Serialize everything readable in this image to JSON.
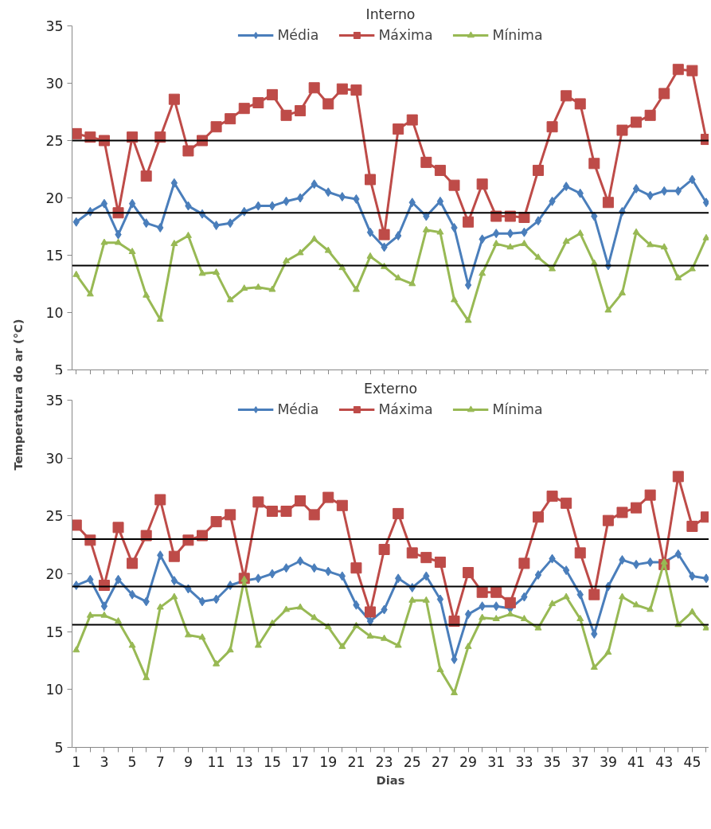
{
  "chart_data": [
    {
      "type": "line",
      "title": "Interno",
      "ylabel": "Temperatura do ar (°C)",
      "x": [
        1,
        2,
        3,
        4,
        5,
        6,
        7,
        8,
        9,
        10,
        11,
        12,
        13,
        14,
        15,
        16,
        17,
        18,
        19,
        20,
        21,
        22,
        23,
        24,
        25,
        26,
        27,
        28,
        29,
        30,
        31,
        32,
        33,
        34,
        35,
        36,
        37,
        38,
        39,
        40,
        41,
        42,
        43,
        44,
        45,
        46
      ],
      "series": [
        {
          "name": "Média",
          "color": "#4a7ebb",
          "marker": "diamond",
          "values": [
            17.9,
            18.8,
            19.5,
            16.8,
            19.5,
            17.8,
            17.4,
            21.3,
            19.3,
            18.6,
            17.6,
            17.8,
            18.8,
            19.3,
            19.3,
            19.7,
            20.0,
            21.2,
            20.5,
            20.1,
            19.9,
            17.0,
            15.7,
            16.7,
            19.6,
            18.4,
            19.7,
            17.4,
            12.4,
            16.4,
            16.9,
            16.9,
            17.0,
            18.0,
            19.7,
            21.0,
            20.4,
            18.4,
            14.1,
            18.8,
            20.8,
            20.2,
            20.6,
            20.6,
            21.6,
            19.6
          ]
        },
        {
          "name": "Máxima",
          "color": "#be4b48",
          "marker": "square",
          "values": [
            25.6,
            25.3,
            25.0,
            18.7,
            25.3,
            21.9,
            25.3,
            28.6,
            24.1,
            25.0,
            26.2,
            26.9,
            27.8,
            28.3,
            29.0,
            27.2,
            27.6,
            29.6,
            28.2,
            29.5,
            29.4,
            21.6,
            16.8,
            26.0,
            26.8,
            23.1,
            22.4,
            21.1,
            17.9,
            21.2,
            18.4,
            18.4,
            18.3,
            22.4,
            26.2,
            28.9,
            28.2,
            23.0,
            19.6,
            25.9,
            26.6,
            27.2,
            29.1,
            31.2,
            31.1,
            25.1
          ]
        },
        {
          "name": "Mínima",
          "color": "#98b954",
          "marker": "triangle",
          "values": [
            13.3,
            11.6,
            16.1,
            16.1,
            15.3,
            11.5,
            9.4,
            16.0,
            16.7,
            13.4,
            13.5,
            11.1,
            12.1,
            12.2,
            12.0,
            14.5,
            15.2,
            16.4,
            15.4,
            13.9,
            12.0,
            14.9,
            14.0,
            13.0,
            12.5,
            17.2,
            17.0,
            11.1,
            9.3,
            13.4,
            16.0,
            15.7,
            16.0,
            14.8,
            13.8,
            16.2,
            16.9,
            14.3,
            10.2,
            11.7,
            17.0,
            15.9,
            15.7,
            13.0,
            13.8,
            16.5
          ]
        }
      ],
      "ref_lines": [
        {
          "axis": "y",
          "value": 25,
          "label": null,
          "color": "#000000"
        },
        {
          "axis": "y",
          "value": 18.7,
          "label": null,
          "color": "#000000"
        },
        {
          "axis": "y",
          "value": 14.1,
          "label": null,
          "color": "#000000"
        }
      ],
      "xlim": [
        0.7,
        46.2
      ],
      "xticks": [
        1,
        {
          "value": 2,
          "label": null
        },
        3,
        {
          "value": 4,
          "label": null
        },
        5,
        {
          "value": 6,
          "label": null
        },
        7,
        {
          "value": 8,
          "label": null
        },
        9,
        {
          "value": 10,
          "label": null
        },
        11,
        {
          "value": 12,
          "label": null
        },
        13,
        {
          "value": 14,
          "label": null
        },
        15,
        {
          "value": 16,
          "label": null
        },
        17,
        {
          "value": 18,
          "label": null
        },
        19,
        {
          "value": 20,
          "label": null
        },
        21,
        {
          "value": 22,
          "label": null
        },
        23,
        {
          "value": 24,
          "label": null
        },
        25,
        {
          "value": 26,
          "label": null
        },
        27,
        {
          "value": 28,
          "label": null
        },
        29,
        {
          "value": 30,
          "label": null
        },
        31,
        {
          "value": 32,
          "label": null
        },
        33,
        {
          "value": 34,
          "label": null
        },
        35,
        {
          "value": 36,
          "label": null
        },
        37,
        {
          "value": 38,
          "label": null
        },
        39,
        {
          "value": 40,
          "label": null
        },
        41,
        {
          "value": 42,
          "label": null
        },
        43,
        {
          "value": 44,
          "label": null
        },
        45,
        {
          "value": 46,
          "label": null
        }
      ],
      "ylim": [
        5,
        35
      ],
      "yticks": [
        5,
        10,
        15,
        20,
        25,
        30,
        35
      ],
      "tick_labels": "y",
      "grid": false,
      "legend": "top",
      "line_style": "solid"
    },
    {
      "type": "line",
      "title": "Externo",
      "xlabel": "Dias",
      "x": [
        1,
        2,
        3,
        4,
        5,
        6,
        7,
        8,
        9,
        10,
        11,
        12,
        13,
        14,
        15,
        16,
        17,
        18,
        19,
        20,
        21,
        22,
        23,
        24,
        25,
        26,
        27,
        28,
        29,
        30,
        31,
        32,
        33,
        34,
        35,
        36,
        37,
        38,
        39,
        40,
        41,
        42,
        43,
        44,
        45,
        46
      ],
      "series": [
        {
          "name": "Média",
          "color": "#4a7ebb",
          "marker": "diamond",
          "values": [
            19.0,
            19.5,
            17.2,
            19.5,
            18.2,
            17.6,
            21.6,
            19.4,
            18.7,
            17.6,
            17.8,
            19.0,
            19.4,
            19.6,
            20.0,
            20.5,
            21.1,
            20.5,
            20.2,
            19.8,
            17.3,
            15.9,
            16.9,
            19.6,
            18.8,
            19.8,
            17.8,
            12.6,
            16.5,
            17.2,
            17.2,
            17.0,
            18.0,
            19.9,
            21.3,
            20.3,
            18.2,
            14.8,
            18.9,
            21.2,
            20.8,
            21.0,
            21.0,
            21.7,
            19.8,
            19.6
          ]
        },
        {
          "name": "Máxima",
          "color": "#be4b48",
          "marker": "square",
          "values": [
            24.2,
            22.9,
            19.0,
            24.0,
            20.9,
            23.3,
            26.4,
            21.5,
            22.9,
            23.3,
            24.5,
            25.1,
            19.6,
            26.2,
            25.4,
            25.4,
            26.3,
            25.1,
            26.6,
            25.9,
            20.5,
            16.7,
            22.1,
            25.2,
            21.8,
            21.4,
            21.0,
            15.9,
            20.1,
            18.4,
            18.4,
            17.5,
            20.9,
            24.9,
            26.7,
            26.1,
            21.8,
            18.2,
            24.6,
            25.3,
            25.7,
            26.8,
            20.8,
            28.4,
            24.1,
            24.9
          ]
        },
        {
          "name": "Mínima",
          "color": "#98b954",
          "marker": "triangle",
          "values": [
            13.4,
            16.4,
            16.4,
            15.9,
            13.8,
            11.0,
            17.1,
            18.0,
            14.7,
            14.5,
            12.2,
            13.4,
            19.5,
            13.8,
            15.7,
            16.9,
            17.1,
            16.2,
            15.4,
            13.7,
            15.5,
            14.6,
            14.4,
            13.8,
            17.7,
            17.7,
            11.7,
            9.7,
            13.7,
            16.2,
            16.1,
            16.5,
            16.1,
            15.3,
            17.4,
            18.0,
            16.1,
            11.9,
            13.2,
            18.0,
            17.3,
            16.9,
            21.0,
            15.6,
            16.7,
            15.3
          ]
        }
      ],
      "ref_lines": [
        {
          "axis": "y",
          "value": 23,
          "label": null,
          "color": "#000000"
        },
        {
          "axis": "y",
          "value": 18.9,
          "label": null,
          "color": "#000000"
        },
        {
          "axis": "y",
          "value": 15.6,
          "label": null,
          "color": "#000000"
        }
      ],
      "xlim": [
        0.7,
        46.2
      ],
      "xticks": [
        1,
        {
          "value": 2,
          "label": null
        },
        3,
        {
          "value": 4,
          "label": null
        },
        5,
        {
          "value": 6,
          "label": null
        },
        7,
        {
          "value": 8,
          "label": null
        },
        9,
        {
          "value": 10,
          "label": null
        },
        11,
        {
          "value": 12,
          "label": null
        },
        13,
        {
          "value": 14,
          "label": null
        },
        15,
        {
          "value": 16,
          "label": null
        },
        17,
        {
          "value": 18,
          "label": null
        },
        19,
        {
          "value": 20,
          "label": null
        },
        21,
        {
          "value": 22,
          "label": null
        },
        23,
        {
          "value": 24,
          "label": null
        },
        25,
        {
          "value": 26,
          "label": null
        },
        27,
        {
          "value": 28,
          "label": null
        },
        29,
        {
          "value": 30,
          "label": null
        },
        31,
        {
          "value": 32,
          "label": null
        },
        33,
        {
          "value": 34,
          "label": null
        },
        35,
        {
          "value": 36,
          "label": null
        },
        37,
        {
          "value": 38,
          "label": null
        },
        39,
        {
          "value": 40,
          "label": null
        },
        41,
        {
          "value": 42,
          "label": null
        },
        43,
        {
          "value": 44,
          "label": null
        },
        45,
        {
          "value": 46,
          "label": null
        }
      ],
      "ylim": [
        5,
        35
      ],
      "yticks": [
        5,
        10,
        15,
        20,
        25,
        30,
        35
      ],
      "grid": false,
      "legend": "top",
      "line_style": "solid"
    }
  ]
}
